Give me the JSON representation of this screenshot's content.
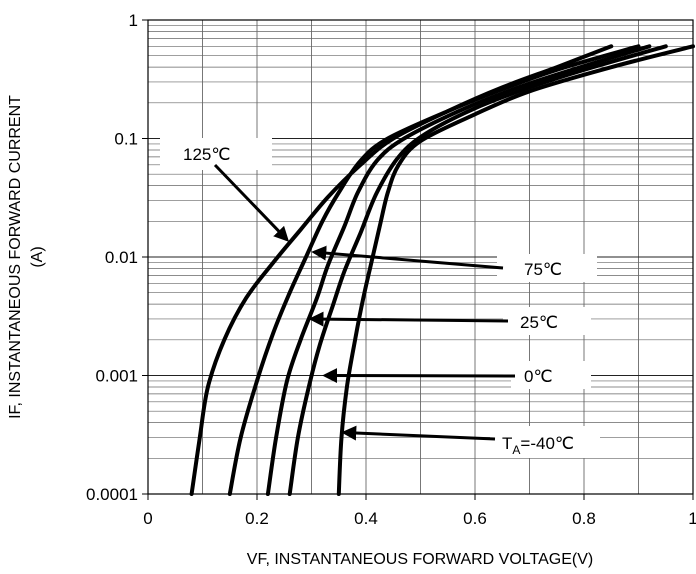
{
  "chart_data": {
    "type": "line",
    "xlabel": "VF, INSTANTANEOUS FORWARD VOLTAGE(V)",
    "ylabel_line1": "IF, INSTANTANEOUS FORWARD CURRENT",
    "ylabel_line2": "(A)",
    "xlim": [
      0,
      1
    ],
    "ylim": [
      0.0001,
      1
    ],
    "yscale": "log",
    "grid": true,
    "x_ticks": [
      {
        "value": 0,
        "label": "0"
      },
      {
        "value": 0.2,
        "label": "0.2"
      },
      {
        "value": 0.4,
        "label": "0.4"
      },
      {
        "value": 0.6,
        "label": "0.6"
      },
      {
        "value": 0.8,
        "label": "0.8"
      },
      {
        "value": 1,
        "label": "1"
      }
    ],
    "y_ticks": [
      {
        "value": 1,
        "label": "1"
      },
      {
        "value": 0.1,
        "label": "0.1"
      },
      {
        "value": 0.01,
        "label": "0.01"
      },
      {
        "value": 0.001,
        "label": "0.001"
      },
      {
        "value": 0.0001,
        "label": "0.0001"
      }
    ],
    "series": [
      {
        "name": "125℃",
        "points": [
          [
            0.08,
            0.0001
          ],
          [
            0.095,
            0.0003
          ],
          [
            0.11,
            0.0008
          ],
          [
            0.14,
            0.002
          ],
          [
            0.18,
            0.0045
          ],
          [
            0.23,
            0.009
          ],
          [
            0.28,
            0.017
          ],
          [
            0.33,
            0.032
          ],
          [
            0.39,
            0.06
          ],
          [
            0.45,
            0.1
          ],
          [
            0.55,
            0.17
          ],
          [
            0.65,
            0.27
          ],
          [
            0.75,
            0.4
          ],
          [
            0.85,
            0.6
          ]
        ]
      },
      {
        "name": "75℃",
        "points": [
          [
            0.15,
            0.0001
          ],
          [
            0.17,
            0.0003
          ],
          [
            0.2,
            0.0009
          ],
          [
            0.23,
            0.0023
          ],
          [
            0.26,
            0.005
          ],
          [
            0.29,
            0.01
          ],
          [
            0.32,
            0.02
          ],
          [
            0.35,
            0.035
          ],
          [
            0.39,
            0.065
          ],
          [
            0.44,
            0.1
          ],
          [
            0.55,
            0.17
          ],
          [
            0.65,
            0.26
          ],
          [
            0.75,
            0.38
          ],
          [
            0.9,
            0.6
          ]
        ]
      },
      {
        "name": "25℃",
        "points": [
          [
            0.22,
            0.0001
          ],
          [
            0.235,
            0.0003
          ],
          [
            0.255,
            0.0009
          ],
          [
            0.28,
            0.002
          ],
          [
            0.31,
            0.0045
          ],
          [
            0.33,
            0.0085
          ],
          [
            0.36,
            0.018
          ],
          [
            0.385,
            0.035
          ],
          [
            0.42,
            0.065
          ],
          [
            0.47,
            0.1
          ],
          [
            0.57,
            0.17
          ],
          [
            0.67,
            0.26
          ],
          [
            0.77,
            0.37
          ],
          [
            0.92,
            0.6
          ]
        ]
      },
      {
        "name": "0℃",
        "points": [
          [
            0.26,
            0.0001
          ],
          [
            0.275,
            0.0003
          ],
          [
            0.295,
            0.0008
          ],
          [
            0.315,
            0.0018
          ],
          [
            0.34,
            0.004
          ],
          [
            0.36,
            0.0075
          ],
          [
            0.39,
            0.016
          ],
          [
            0.42,
            0.035
          ],
          [
            0.46,
            0.07
          ],
          [
            0.51,
            0.11
          ],
          [
            0.6,
            0.18
          ],
          [
            0.7,
            0.27
          ],
          [
            0.8,
            0.38
          ],
          [
            0.95,
            0.6
          ]
        ]
      },
      {
        "name": "Tₐ=-40℃",
        "points": [
          [
            0.35,
            0.0001
          ],
          [
            0.355,
            0.0003
          ],
          [
            0.365,
            0.0008
          ],
          [
            0.38,
            0.002
          ],
          [
            0.395,
            0.0045
          ],
          [
            0.41,
            0.009
          ],
          [
            0.425,
            0.018
          ],
          [
            0.44,
            0.035
          ],
          [
            0.46,
            0.06
          ],
          [
            0.5,
            0.095
          ],
          [
            0.6,
            0.16
          ],
          [
            0.7,
            0.25
          ],
          [
            0.85,
            0.4
          ],
          [
            1.0,
            0.6
          ]
        ]
      }
    ],
    "annotations": [
      {
        "id": "a125",
        "text": "125℃",
        "target": [
          0.255,
          0.014
        ]
      },
      {
        "id": "a75",
        "text": "75℃",
        "target": [
          0.305,
          0.011
        ]
      },
      {
        "id": "a25",
        "text": "25℃",
        "target": [
          0.3,
          0.003
        ]
      },
      {
        "id": "a0",
        "text": "0℃",
        "target": [
          0.325,
          0.001
        ]
      },
      {
        "id": "a40",
        "text_main": "T",
        "text_sub": "A",
        "text_rest": "=-40℃",
        "target": [
          0.36,
          0.00033
        ]
      }
    ]
  }
}
